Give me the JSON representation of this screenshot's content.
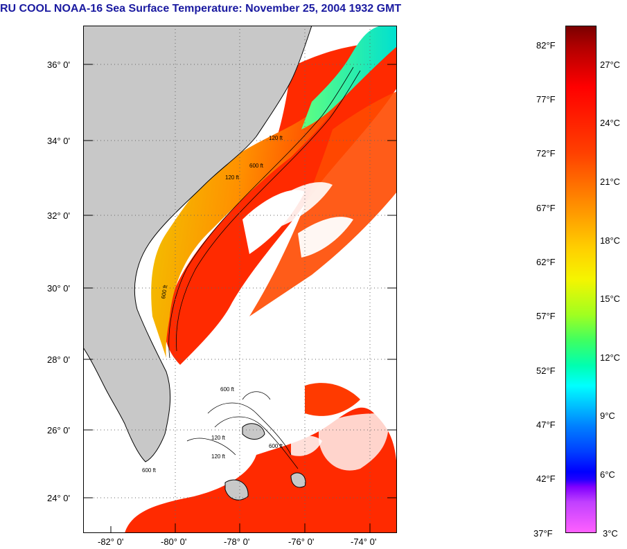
{
  "title": "RU COOL  NOAA-16  Sea Surface Temperature:  November 25, 2004 1932 GMT",
  "map": {
    "lat_labels": [
      "36° 0'",
      "34° 0'",
      "32° 0'",
      "30° 0'",
      "28° 0'",
      "26° 0'",
      "24° 0'"
    ],
    "lon_labels": [
      "-82° 0'",
      "-80° 0'",
      "-78° 0'",
      "-76° 0'",
      "-74° 0'"
    ],
    "contour_labels": [
      "120 ft",
      "600 ft",
      "120 ft",
      "600 ft",
      "600 ft",
      "120 ft",
      "600 ft",
      "120 ft",
      "600 ft"
    ],
    "colors": {
      "land": "#c8c8c8",
      "ocean_cloud": "#ffffff",
      "warm": "#ff2000",
      "coastal_cool": "#20e0e0"
    }
  },
  "colorbar": {
    "fahrenheit": [
      "82°F",
      "77°F",
      "72°F",
      "67°F",
      "62°F",
      "57°F",
      "52°F",
      "47°F",
      "42°F",
      "37°F"
    ],
    "celsius": [
      "27°C",
      "24°C",
      "21°C",
      "18°C",
      "15°C",
      "12°C",
      "9°C",
      "6°C",
      "3°C"
    ]
  }
}
